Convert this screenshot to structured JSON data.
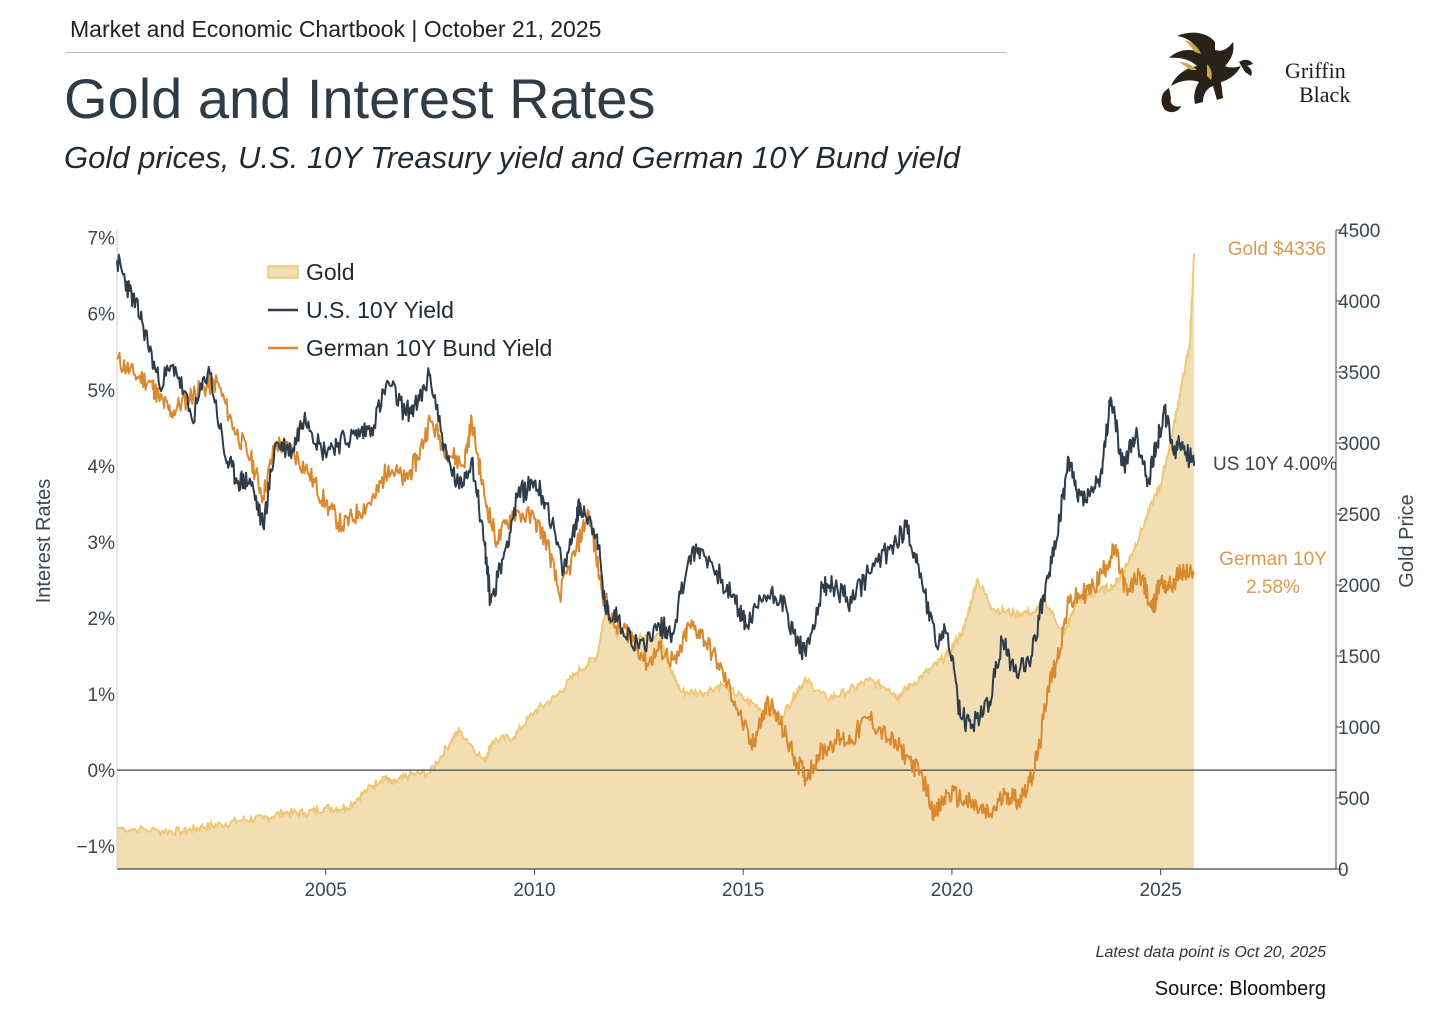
{
  "header": {
    "kicker": "Market and Economic Chartbook | October 21, 2025",
    "title": "Gold and Interest Rates",
    "subtitle": "Gold prices, U.S. 10Y Treasury yield and German 10Y Bund yield"
  },
  "logo": {
    "line1": "Griffin",
    "line2": "Black",
    "icon": "griffin-emblem"
  },
  "footer": {
    "note": "Latest data point is Oct 20, 2025",
    "source": "Source: Bloomberg"
  },
  "colors": {
    "gold_fill": "#f3deb4",
    "gold_line": "#ecc877",
    "us10y": "#2f3d4a",
    "bund": "#d9892f",
    "gold_label": "#d89a4e",
    "text": "#3a4650"
  },
  "chart_data": {
    "type": "line",
    "title": "Gold and Interest Rates",
    "subtitle": "Gold prices, U.S. 10Y Treasury yield and German 10Y Bund yield",
    "xlim": [
      2000.0,
      2029.2
    ],
    "x_ticks": [
      "2005",
      "2010",
      "2015",
      "2020",
      "2025"
    ],
    "y_left": {
      "label": "Interest Rates",
      "lim": [
        -1.3,
        7.1
      ],
      "ticks": [
        "−1%",
        "0%",
        "1%",
        "2%",
        "3%",
        "4%",
        "5%",
        "6%",
        "7%"
      ]
    },
    "y_right": {
      "label": "Gold Price",
      "lim": [
        0,
        4500
      ],
      "ticks": [
        "0",
        "500",
        "1000",
        "1500",
        "2000",
        "2500",
        "3000",
        "3500",
        "4000",
        "4500"
      ]
    },
    "legend": {
      "position": "top-left",
      "entries": [
        "Gold",
        "U.S. 10Y Yield",
        "German 10Y Bund Yield"
      ]
    },
    "zero_line": true,
    "series": [
      {
        "name": "Gold",
        "axis": "right",
        "style": "area",
        "x": [
          2000.0,
          2001.0,
          2001.6,
          2002.0,
          2002.5,
          2003.0,
          2003.5,
          2004.0,
          2004.5,
          2005.0,
          2005.5,
          2006.0,
          2006.4,
          2006.6,
          2007.0,
          2007.5,
          2008.0,
          2008.2,
          2008.8,
          2009.0,
          2009.5,
          2010.0,
          2010.5,
          2011.0,
          2011.5,
          2011.7,
          2012.0,
          2012.5,
          2013.0,
          2013.3,
          2013.5,
          2014.0,
          2014.5,
          2015.0,
          2015.5,
          2015.9,
          2016.3,
          2016.5,
          2017.0,
          2017.5,
          2018.0,
          2018.5,
          2018.7,
          2019.0,
          2019.5,
          2019.9,
          2020.3,
          2020.6,
          2021.0,
          2021.5,
          2022.0,
          2022.2,
          2022.7,
          2023.0,
          2023.5,
          2023.9,
          2024.2,
          2024.5,
          2024.9,
          2025.0,
          2025.3,
          2025.5,
          2025.7,
          2025.8
        ],
        "values": [
          290,
          270,
          265,
          295,
          315,
          345,
          355,
          400,
          395,
          430,
          430,
          560,
          650,
          600,
          660,
          680,
          900,
          980,
          760,
          900,
          930,
          1110,
          1210,
          1380,
          1500,
          1830,
          1650,
          1620,
          1660,
          1380,
          1250,
          1240,
          1300,
          1200,
          1120,
          1060,
          1260,
          1330,
          1200,
          1250,
          1330,
          1270,
          1210,
          1290,
          1410,
          1510,
          1700,
          2040,
          1830,
          1800,
          1810,
          1900,
          1650,
          1900,
          1950,
          2000,
          2150,
          2350,
          2650,
          2700,
          3100,
          3400,
          3700,
          4336
        ]
      },
      {
        "name": "U.S. 10Y Yield",
        "axis": "left",
        "x": [
          2000.0,
          2000.3,
          2000.6,
          2001.0,
          2001.4,
          2001.8,
          2002.2,
          2002.6,
          2002.9,
          2003.2,
          2003.5,
          2003.8,
          2004.2,
          2004.5,
          2004.9,
          2005.3,
          2005.7,
          2006.1,
          2006.5,
          2006.9,
          2007.2,
          2007.5,
          2007.9,
          2008.2,
          2008.5,
          2008.8,
          2008.95,
          2009.3,
          2009.6,
          2010.0,
          2010.3,
          2010.7,
          2011.0,
          2011.1,
          2011.5,
          2011.7,
          2012.0,
          2012.5,
          2013.0,
          2013.3,
          2013.7,
          2014.0,
          2014.5,
          2014.9,
          2015.1,
          2015.5,
          2015.9,
          2016.2,
          2016.5,
          2016.9,
          2017.2,
          2017.6,
          2018.0,
          2018.5,
          2018.9,
          2019.2,
          2019.6,
          2019.9,
          2020.2,
          2020.5,
          2020.9,
          2021.2,
          2021.5,
          2021.9,
          2022.2,
          2022.5,
          2022.8,
          2023.0,
          2023.3,
          2023.6,
          2023.8,
          2024.1,
          2024.4,
          2024.7,
          2024.9,
          2025.1,
          2025.3,
          2025.5,
          2025.8
        ],
        "values": [
          6.7,
          6.3,
          5.9,
          5.1,
          5.3,
          4.6,
          5.3,
          4.1,
          3.8,
          3.8,
          3.2,
          4.3,
          4.2,
          4.7,
          4.2,
          4.3,
          4.4,
          4.5,
          5.1,
          4.7,
          4.8,
          5.2,
          4.1,
          3.7,
          4.1,
          3.0,
          2.2,
          2.9,
          3.6,
          3.8,
          3.5,
          2.6,
          3.3,
          3.5,
          3.1,
          2.1,
          2.0,
          1.6,
          1.9,
          1.8,
          2.8,
          2.9,
          2.5,
          2.1,
          1.9,
          2.3,
          2.3,
          1.8,
          1.5,
          2.4,
          2.4,
          2.2,
          2.6,
          2.9,
          3.2,
          2.7,
          1.7,
          1.8,
          0.7,
          0.6,
          0.9,
          1.7,
          1.3,
          1.5,
          2.3,
          3.0,
          4.1,
          3.6,
          3.6,
          3.9,
          4.9,
          4.0,
          4.4,
          3.8,
          4.3,
          4.7,
          4.2,
          4.3,
          4.0
        ]
      },
      {
        "name": "German 10Y Bund Yield",
        "axis": "left",
        "x": [
          2000.0,
          2000.4,
          2000.8,
          2001.0,
          2001.3,
          2001.7,
          2002.0,
          2002.4,
          2002.8,
          2003.2,
          2003.5,
          2003.8,
          2004.2,
          2004.6,
          2005.0,
          2005.4,
          2005.8,
          2006.2,
          2006.5,
          2006.9,
          2007.2,
          2007.5,
          2007.9,
          2008.3,
          2008.5,
          2008.8,
          2009.1,
          2009.5,
          2010.0,
          2010.3,
          2010.6,
          2011.0,
          2011.3,
          2011.6,
          2011.9,
          2012.3,
          2012.7,
          2013.0,
          2013.4,
          2013.7,
          2014.0,
          2014.4,
          2014.8,
          2015.2,
          2015.4,
          2015.6,
          2015.9,
          2016.2,
          2016.5,
          2016.8,
          2017.2,
          2017.6,
          2018.0,
          2018.5,
          2018.9,
          2019.3,
          2019.6,
          2019.9,
          2020.3,
          2020.6,
          2020.9,
          2021.3,
          2021.6,
          2021.9,
          2022.1,
          2022.3,
          2022.5,
          2022.8,
          2023.1,
          2023.4,
          2023.7,
          2023.9,
          2024.2,
          2024.5,
          2024.8,
          2025.0,
          2025.2,
          2025.5,
          2025.8
        ],
        "values": [
          5.4,
          5.2,
          5.1,
          4.9,
          4.7,
          4.9,
          5.0,
          5.1,
          4.5,
          4.1,
          3.6,
          4.3,
          4.2,
          3.9,
          3.5,
          3.2,
          3.4,
          3.6,
          4.0,
          3.8,
          4.1,
          4.6,
          4.2,
          4.0,
          4.6,
          3.6,
          3.0,
          3.4,
          3.3,
          3.0,
          2.3,
          2.9,
          3.4,
          2.4,
          1.9,
          1.8,
          1.4,
          1.6,
          1.4,
          1.9,
          1.8,
          1.4,
          0.9,
          0.3,
          0.6,
          0.9,
          0.6,
          0.2,
          -0.1,
          0.2,
          0.4,
          0.4,
          0.7,
          0.4,
          0.2,
          -0.1,
          -0.6,
          -0.3,
          -0.4,
          -0.5,
          -0.6,
          -0.3,
          -0.4,
          -0.1,
          0.3,
          1.1,
          1.4,
          2.2,
          2.3,
          2.4,
          2.7,
          2.9,
          2.3,
          2.6,
          2.1,
          2.5,
          2.4,
          2.6,
          2.58
        ]
      }
    ],
    "annotations": [
      {
        "text": "Gold $4336",
        "series": "Gold"
      },
      {
        "text": "US 10Y 4.00%",
        "series": "U.S. 10Y Yield"
      },
      {
        "text": "German 10Y",
        "series": "German 10Y Bund Yield"
      },
      {
        "text": "2.58%",
        "series": "German 10Y Bund Yield"
      }
    ]
  }
}
